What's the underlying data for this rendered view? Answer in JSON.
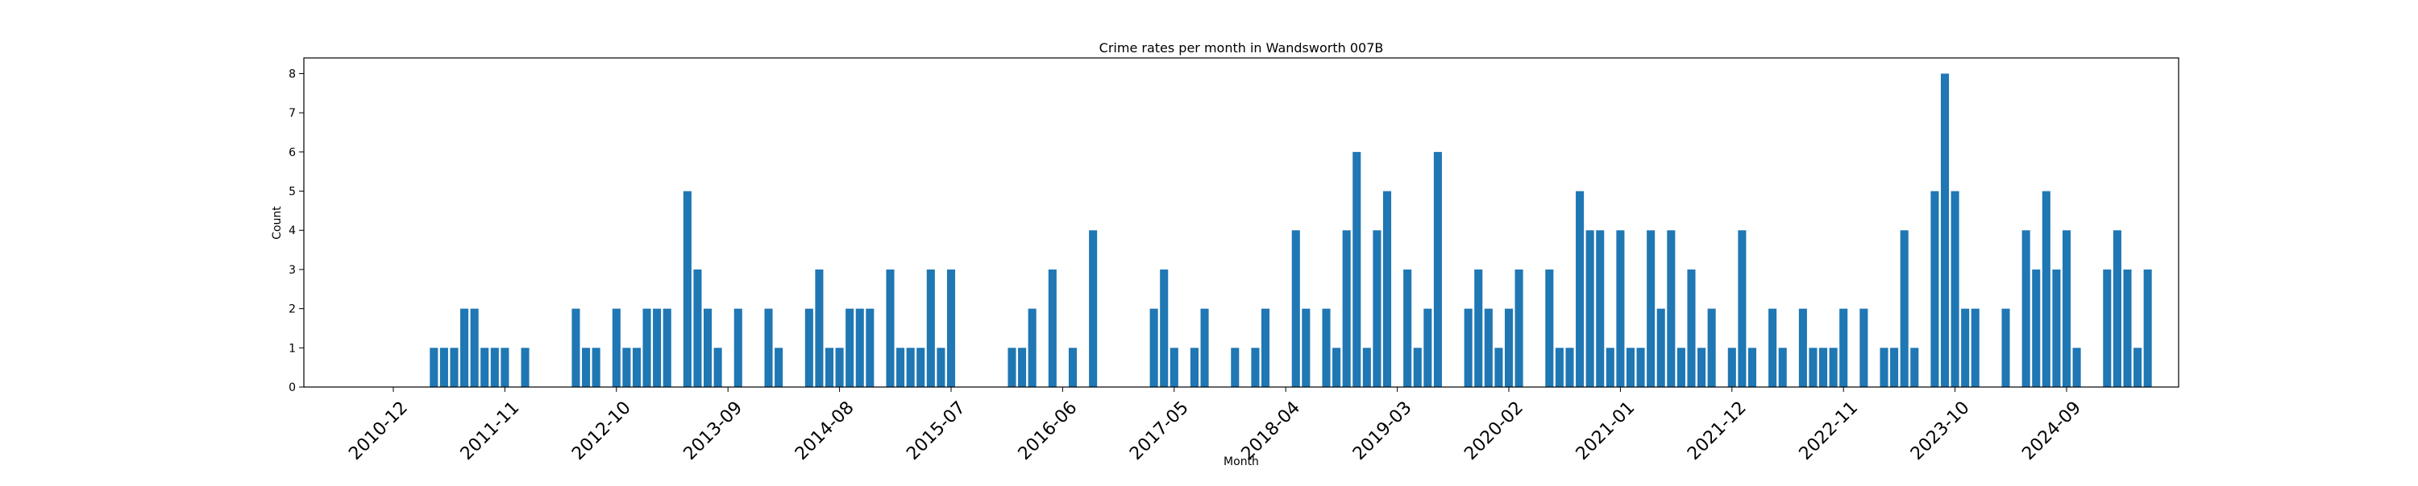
{
  "chart_data": {
    "type": "bar",
    "title": "Crime rates per month in Wandsworth 007B",
    "xlabel": "Month",
    "ylabel": "Count",
    "ylim": [
      0,
      8.4
    ],
    "yticks": [
      0,
      1,
      2,
      3,
      4,
      5,
      6,
      7,
      8
    ],
    "xtick_labels": [
      "2010-12",
      "2011-11",
      "2012-10",
      "2013-09",
      "2014-08",
      "2015-07",
      "2016-06",
      "2017-05",
      "2018-04",
      "2019-03",
      "2020-02",
      "2021-01",
      "2021-12",
      "2022-11",
      "2023-10",
      "2024-09"
    ],
    "x_start": "2010-12",
    "x_end": "2025-03",
    "grid": false,
    "color": "#1f77b4",
    "bars": [
      {
        "x": "2011-04",
        "y": 1
      },
      {
        "x": "2011-05",
        "y": 1
      },
      {
        "x": "2011-06",
        "y": 1
      },
      {
        "x": "2011-07",
        "y": 2
      },
      {
        "x": "2011-08",
        "y": 2
      },
      {
        "x": "2011-09",
        "y": 1
      },
      {
        "x": "2011-10",
        "y": 1
      },
      {
        "x": "2011-11",
        "y": 1
      },
      {
        "x": "2012-01",
        "y": 1
      },
      {
        "x": "2012-06",
        "y": 2
      },
      {
        "x": "2012-07",
        "y": 1
      },
      {
        "x": "2012-08",
        "y": 1
      },
      {
        "x": "2012-10",
        "y": 2
      },
      {
        "x": "2012-11",
        "y": 1
      },
      {
        "x": "2012-12",
        "y": 1
      },
      {
        "x": "2013-01",
        "y": 2
      },
      {
        "x": "2013-02",
        "y": 2
      },
      {
        "x": "2013-03",
        "y": 2
      },
      {
        "x": "2013-05",
        "y": 5
      },
      {
        "x": "2013-06",
        "y": 3
      },
      {
        "x": "2013-07",
        "y": 2
      },
      {
        "x": "2013-08",
        "y": 1
      },
      {
        "x": "2013-10",
        "y": 2
      },
      {
        "x": "2014-01",
        "y": 2
      },
      {
        "x": "2014-02",
        "y": 1
      },
      {
        "x": "2014-05",
        "y": 2
      },
      {
        "x": "2014-06",
        "y": 3
      },
      {
        "x": "2014-07",
        "y": 1
      },
      {
        "x": "2014-08",
        "y": 1
      },
      {
        "x": "2014-09",
        "y": 2
      },
      {
        "x": "2014-10",
        "y": 2
      },
      {
        "x": "2014-11",
        "y": 2
      },
      {
        "x": "2015-01",
        "y": 3
      },
      {
        "x": "2015-02",
        "y": 1
      },
      {
        "x": "2015-03",
        "y": 1
      },
      {
        "x": "2015-04",
        "y": 1
      },
      {
        "x": "2015-05",
        "y": 3
      },
      {
        "x": "2015-06",
        "y": 1
      },
      {
        "x": "2015-07",
        "y": 3
      },
      {
        "x": "2016-01",
        "y": 1
      },
      {
        "x": "2016-02",
        "y": 1
      },
      {
        "x": "2016-03",
        "y": 2
      },
      {
        "x": "2016-05",
        "y": 3
      },
      {
        "x": "2016-07",
        "y": 1
      },
      {
        "x": "2016-09",
        "y": 4
      },
      {
        "x": "2017-03",
        "y": 2
      },
      {
        "x": "2017-04",
        "y": 3
      },
      {
        "x": "2017-05",
        "y": 1
      },
      {
        "x": "2017-07",
        "y": 1
      },
      {
        "x": "2017-08",
        "y": 2
      },
      {
        "x": "2017-11",
        "y": 1
      },
      {
        "x": "2018-01",
        "y": 1
      },
      {
        "x": "2018-02",
        "y": 2
      },
      {
        "x": "2018-05",
        "y": 4
      },
      {
        "x": "2018-06",
        "y": 2
      },
      {
        "x": "2018-08",
        "y": 2
      },
      {
        "x": "2018-09",
        "y": 1
      },
      {
        "x": "2018-10",
        "y": 4
      },
      {
        "x": "2018-11",
        "y": 6
      },
      {
        "x": "2018-12",
        "y": 1
      },
      {
        "x": "2019-01",
        "y": 4
      },
      {
        "x": "2019-02",
        "y": 5
      },
      {
        "x": "2019-04",
        "y": 3
      },
      {
        "x": "2019-05",
        "y": 1
      },
      {
        "x": "2019-06",
        "y": 2
      },
      {
        "x": "2019-07",
        "y": 6
      },
      {
        "x": "2019-10",
        "y": 2
      },
      {
        "x": "2019-11",
        "y": 3
      },
      {
        "x": "2019-12",
        "y": 2
      },
      {
        "x": "2020-01",
        "y": 1
      },
      {
        "x": "2020-02",
        "y": 2
      },
      {
        "x": "2020-03",
        "y": 3
      },
      {
        "x": "2020-06",
        "y": 3
      },
      {
        "x": "2020-07",
        "y": 1
      },
      {
        "x": "2020-08",
        "y": 1
      },
      {
        "x": "2020-09",
        "y": 5
      },
      {
        "x": "2020-10",
        "y": 4
      },
      {
        "x": "2020-11",
        "y": 4
      },
      {
        "x": "2020-12",
        "y": 1
      },
      {
        "x": "2021-01",
        "y": 4
      },
      {
        "x": "2021-02",
        "y": 1
      },
      {
        "x": "2021-03",
        "y": 1
      },
      {
        "x": "2021-04",
        "y": 4
      },
      {
        "x": "2021-05",
        "y": 2
      },
      {
        "x": "2021-06",
        "y": 4
      },
      {
        "x": "2021-07",
        "y": 1
      },
      {
        "x": "2021-08",
        "y": 3
      },
      {
        "x": "2021-09",
        "y": 1
      },
      {
        "x": "2021-10",
        "y": 2
      },
      {
        "x": "2021-12",
        "y": 1
      },
      {
        "x": "2022-01",
        "y": 4
      },
      {
        "x": "2022-02",
        "y": 1
      },
      {
        "x": "2022-04",
        "y": 2
      },
      {
        "x": "2022-05",
        "y": 1
      },
      {
        "x": "2022-07",
        "y": 2
      },
      {
        "x": "2022-08",
        "y": 1
      },
      {
        "x": "2022-09",
        "y": 1
      },
      {
        "x": "2022-10",
        "y": 1
      },
      {
        "x": "2022-11",
        "y": 2
      },
      {
        "x": "2023-01",
        "y": 2
      },
      {
        "x": "2023-03",
        "y": 1
      },
      {
        "x": "2023-04",
        "y": 1
      },
      {
        "x": "2023-05",
        "y": 4
      },
      {
        "x": "2023-06",
        "y": 1
      },
      {
        "x": "2023-08",
        "y": 5
      },
      {
        "x": "2023-09",
        "y": 8
      },
      {
        "x": "2023-10",
        "y": 5
      },
      {
        "x": "2023-11",
        "y": 2
      },
      {
        "x": "2023-12",
        "y": 2
      },
      {
        "x": "2024-03",
        "y": 2
      },
      {
        "x": "2024-05",
        "y": 4
      },
      {
        "x": "2024-06",
        "y": 3
      },
      {
        "x": "2024-07",
        "y": 5
      },
      {
        "x": "2024-08",
        "y": 3
      },
      {
        "x": "2024-09",
        "y": 4
      },
      {
        "x": "2024-10",
        "y": 1
      },
      {
        "x": "2025-01",
        "y": 3
      },
      {
        "x": "2025-02",
        "y": 4
      },
      {
        "x": "2025-03",
        "y": 3
      },
      {
        "x": "2025-04",
        "y": 1
      },
      {
        "x": "2025-05",
        "y": 3
      }
    ]
  }
}
